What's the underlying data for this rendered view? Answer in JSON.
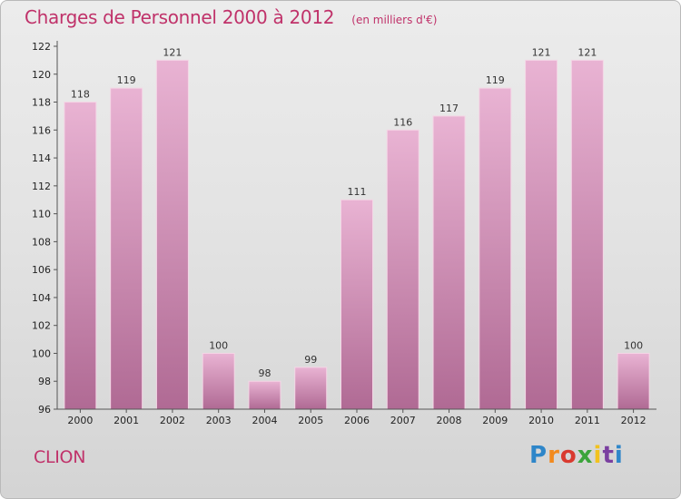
{
  "header": {
    "title": "Charges de Personnel 2000 à 2012",
    "subtitle": "(en milliers d'€)"
  },
  "footer": {
    "commune": "CLION",
    "logo_text": "Proxiti",
    "logo_colors": [
      "#2e86c9",
      "#f28a1e",
      "#d93a2f",
      "#3ba43b",
      "#f2c21e",
      "#7a3fa0",
      "#2e86c9"
    ]
  },
  "colors": {
    "bar": "#d78fb8",
    "bar_light": "#e9b3d3",
    "bar_dark": "#b06a94",
    "title": "#c0326a"
  },
  "chart_data": {
    "type": "bar",
    "title": "Charges de Personnel 2000 à 2012",
    "subtitle": "(en milliers d'€)",
    "categories": [
      "2000",
      "2001",
      "2002",
      "2003",
      "2004",
      "2005",
      "2006",
      "2007",
      "2008",
      "2009",
      "2010",
      "2011",
      "2012"
    ],
    "values": [
      118,
      119,
      121,
      100,
      98,
      99,
      111,
      116,
      117,
      119,
      121,
      121,
      100
    ],
    "ylim": [
      96,
      122
    ],
    "yticks": [
      96,
      98,
      100,
      102,
      104,
      106,
      108,
      110,
      112,
      114,
      116,
      118,
      120,
      122
    ],
    "grid": false,
    "legend": "none"
  }
}
